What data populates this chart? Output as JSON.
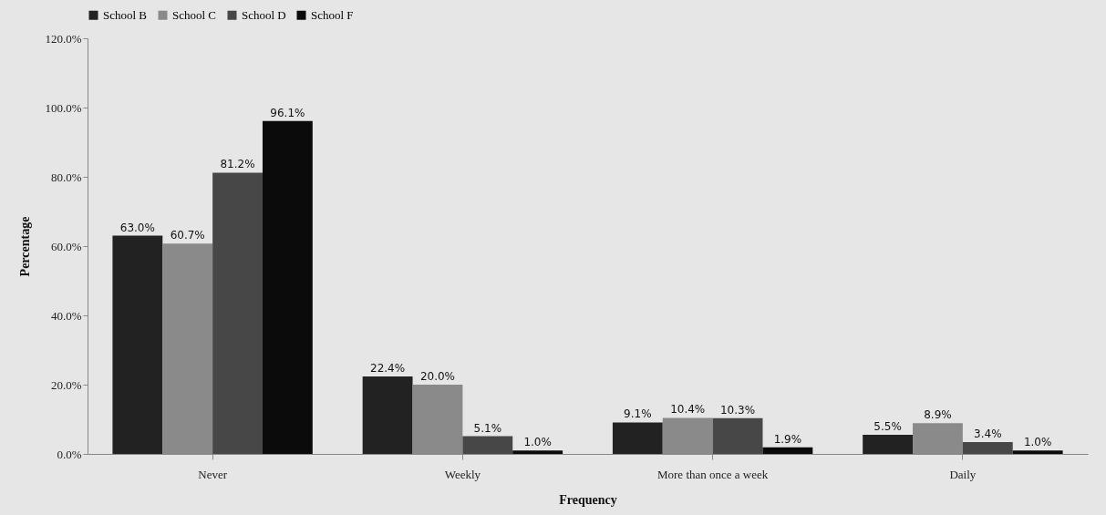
{
  "chart_data": {
    "type": "bar",
    "xlabel": "Frequency",
    "ylabel": "Percentage",
    "categories": [
      "Never",
      "Weekly",
      "More than once a week",
      "Daily"
    ],
    "series": [
      {
        "name": "School B",
        "color": "#222222",
        "values": [
          63.0,
          22.4,
          9.1,
          5.5
        ],
        "value_labels": [
          "63.0%",
          "22.4%",
          "9.1%",
          "5.5%"
        ]
      },
      {
        "name": "School C",
        "color": "#8a8a8a",
        "values": [
          60.7,
          20.0,
          10.4,
          8.9
        ],
        "value_labels": [
          "60.7%",
          "20.0%",
          "10.4%",
          "8.9%"
        ]
      },
      {
        "name": "School D",
        "color": "#474747",
        "values": [
          81.2,
          5.1,
          10.3,
          3.4
        ],
        "value_labels": [
          "81.2%",
          "5.1%",
          "10.3%",
          "3.4%"
        ]
      },
      {
        "name": "School F",
        "color": "#0b0b0b",
        "values": [
          96.1,
          1.0,
          1.9,
          1.0
        ],
        "value_labels": [
          "96.1%",
          "1.0%",
          "1.9%",
          "1.0%"
        ]
      }
    ],
    "ylim": [
      0,
      120
    ],
    "yticks": [
      {
        "value": 0,
        "label": "0.0%"
      },
      {
        "value": 20,
        "label": "20.0%"
      },
      {
        "value": 40,
        "label": "40.0%"
      },
      {
        "value": 60,
        "label": "60.0%"
      },
      {
        "value": 80,
        "label": "80.0%"
      },
      {
        "value": 100,
        "label": "100.0%"
      },
      {
        "value": 120,
        "label": "120.0%"
      }
    ],
    "grid": false,
    "legend": "top"
  }
}
